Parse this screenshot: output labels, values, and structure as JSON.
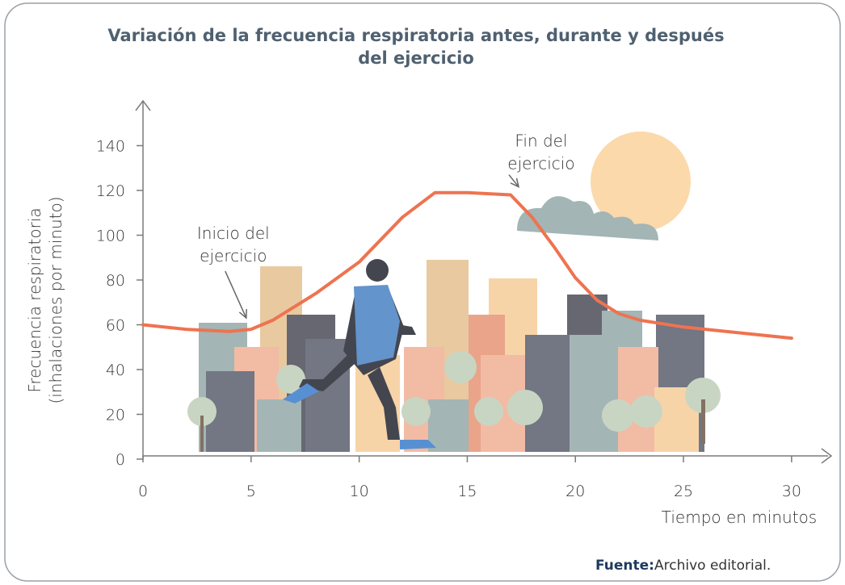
{
  "chart_data": {
    "type": "line",
    "title": [
      "Variación de la frecuencia respiratoria antes, durante y después",
      "del ejercicio"
    ],
    "x_label": "Tiempo en minutos",
    "y_label": [
      "Frecuencia respiratoria",
      "(inhalaciones por minuto)"
    ],
    "x": [
      0,
      2,
      4,
      5,
      6,
      8,
      10,
      12,
      13.5,
      15,
      17,
      18,
      19,
      20,
      21,
      22,
      23,
      25,
      28,
      30
    ],
    "series": [
      {
        "name": "Frecuencia respiratoria",
        "color": "#ee7350",
        "values": [
          60,
          58,
          57,
          58,
          62,
          74,
          88,
          108,
          119,
          119,
          118,
          108,
          95,
          81,
          71,
          65,
          62,
          59,
          56,
          54
        ]
      }
    ],
    "xlim": [
      0,
      31.5
    ],
    "xticks": [
      0,
      5,
      10,
      15,
      20,
      25,
      30
    ],
    "ylim": [
      0,
      160
    ],
    "yticks": [
      0,
      20,
      40,
      60,
      80,
      100,
      120,
      140
    ],
    "annotations": [
      {
        "lines": [
          "Inicio del",
          "ejercicio"
        ],
        "x": 5,
        "y": 58
      },
      {
        "lines": [
          "Fin del",
          "ejercicio"
        ],
        "x": 17,
        "y": 118
      }
    ],
    "source": {
      "label": "Fuente:",
      "text": "Archivo editorial."
    }
  }
}
